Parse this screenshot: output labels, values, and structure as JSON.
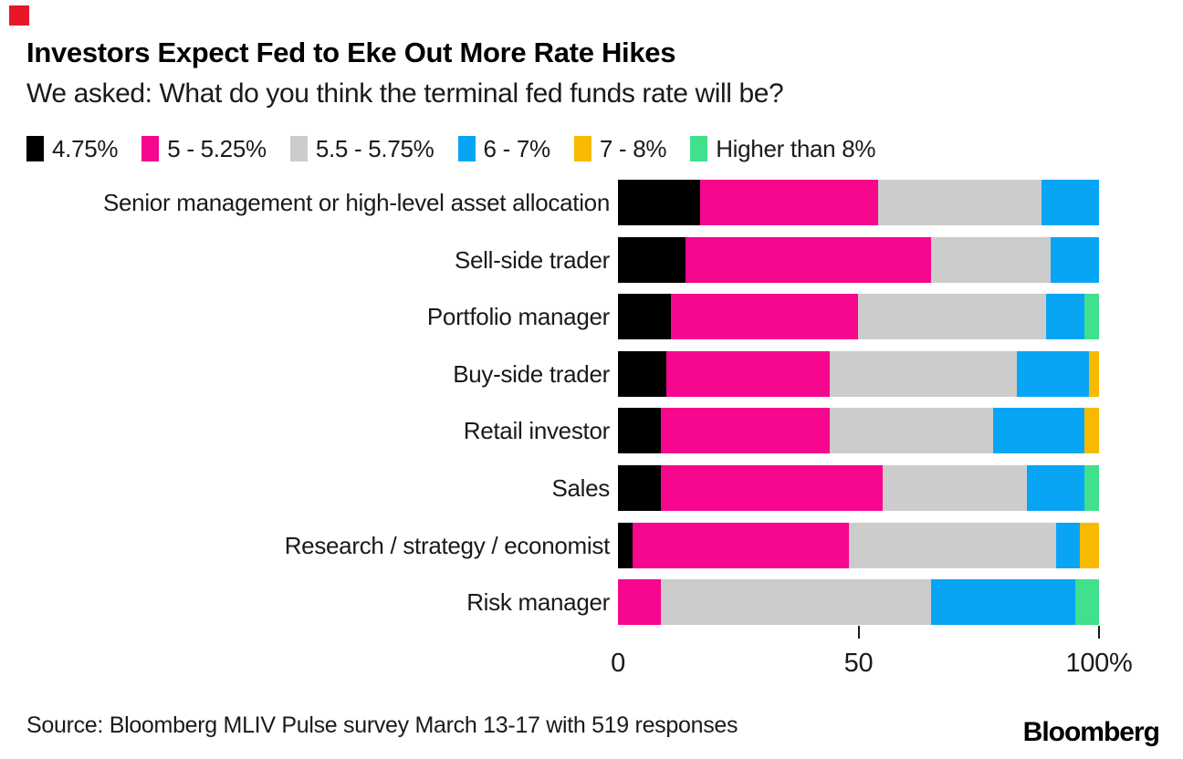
{
  "header": {
    "marker_color": "#e51828",
    "title": "Investors Expect Fed to Eke Out More Rate Hikes",
    "subtitle": "We asked: What do you think the terminal fed funds rate will be?"
  },
  "chart_data": {
    "type": "bar",
    "orientation": "horizontal_stacked",
    "title": "Investors Expect Fed to Eke Out More Rate Hikes",
    "subtitle": "We asked: What do you think the terminal fed funds rate will be?",
    "legend_position": "top",
    "grid": false,
    "xlim": [
      0,
      100
    ],
    "x_ticks": [
      {
        "label": "0",
        "value": 0,
        "mark": false
      },
      {
        "label": "50",
        "value": 50,
        "mark": true
      },
      {
        "label": "100%",
        "value": 100,
        "mark": true
      }
    ],
    "categories": [
      "Senior management or high-level asset allocation",
      "Sell-side trader",
      "Portfolio manager",
      "Buy-side trader",
      "Retail investor",
      "Sales",
      "Research / strategy / economist",
      "Risk manager"
    ],
    "series": [
      {
        "name": "4.75%",
        "color": "#000000",
        "values": [
          17,
          14,
          11,
          10,
          9,
          9,
          3,
          0
        ]
      },
      {
        "name": "5 - 5.25%",
        "color": "#f7068e",
        "values": [
          37,
          51,
          39,
          34,
          35,
          46,
          45,
          9
        ]
      },
      {
        "name": "5.5 - 5.75%",
        "color": "#cccccc",
        "values": [
          34,
          25,
          39,
          39,
          34,
          30,
          43,
          56
        ]
      },
      {
        "name": "6 - 7%",
        "color": "#09a5f5",
        "values": [
          12,
          10,
          8,
          15,
          19,
          12,
          5,
          30
        ]
      },
      {
        "name": "7 - 8%",
        "color": "#f8ba00",
        "values": [
          0,
          0,
          0,
          2,
          3,
          0,
          4,
          0
        ]
      },
      {
        "name": "Higher than 8%",
        "color": "#40e08d",
        "values": [
          0,
          0,
          3,
          0,
          0,
          3,
          0,
          5
        ]
      }
    ]
  },
  "footer": {
    "source": "Source: Bloomberg MLIV Pulse survey March 13-17 with 519 responses",
    "brand": "Bloomberg"
  }
}
